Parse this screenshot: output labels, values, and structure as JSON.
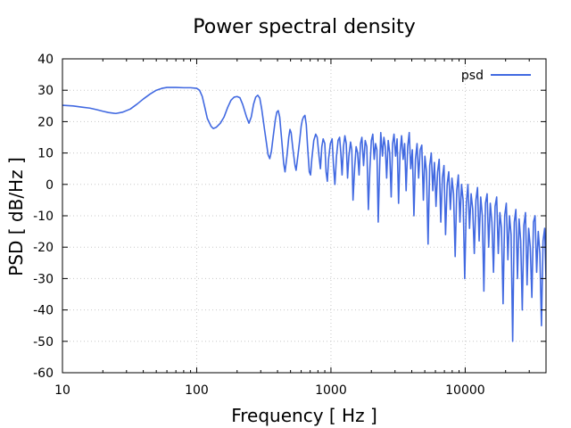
{
  "chart_data": {
    "type": "line",
    "title": "Power spectral density",
    "xlabel": "Frequency [ Hz ]",
    "ylabel": "PSD [ dB/Hz ]",
    "xscale": "log",
    "xlim": [
      10,
      40000
    ],
    "ylim": [
      -60,
      40
    ],
    "x_ticks": [
      10,
      100,
      1000,
      10000
    ],
    "x_tick_labels": [
      "10",
      "100",
      "1000",
      "10000"
    ],
    "y_ticks": [
      -60,
      -50,
      -40,
      -30,
      -20,
      -10,
      0,
      10,
      20,
      30,
      40
    ],
    "y_tick_labels": [
      "-60",
      "-50",
      "-40",
      "-30",
      "-20",
      "-10",
      "0",
      "10",
      "20",
      "30",
      "40"
    ],
    "grid": true,
    "legend_position": "top-right",
    "series": [
      {
        "name": "psd",
        "color": "#4169e1",
        "points": [
          [
            10,
            25.2
          ],
          [
            12,
            25.0
          ],
          [
            14,
            24.6
          ],
          [
            16,
            24.3
          ],
          [
            18,
            23.8
          ],
          [
            20,
            23.3
          ],
          [
            22,
            22.9
          ],
          [
            25,
            22.6
          ],
          [
            28,
            23.0
          ],
          [
            32,
            24.0
          ],
          [
            36,
            25.6
          ],
          [
            40,
            27.2
          ],
          [
            45,
            28.8
          ],
          [
            50,
            30.0
          ],
          [
            55,
            30.6
          ],
          [
            60,
            30.9
          ],
          [
            70,
            30.9
          ],
          [
            80,
            30.8
          ],
          [
            90,
            30.8
          ],
          [
            100,
            30.6
          ],
          [
            105,
            30.0
          ],
          [
            110,
            28.0
          ],
          [
            115,
            24.5
          ],
          [
            120,
            21.0
          ],
          [
            128,
            18.5
          ],
          [
            133,
            17.8
          ],
          [
            140,
            18.2
          ],
          [
            150,
            19.5
          ],
          [
            160,
            21.5
          ],
          [
            170,
            24.5
          ],
          [
            180,
            26.8
          ],
          [
            190,
            27.8
          ],
          [
            200,
            28.0
          ],
          [
            210,
            27.6
          ],
          [
            220,
            25.5
          ],
          [
            235,
            21.5
          ],
          [
            245,
            19.5
          ],
          [
            255,
            21.5
          ],
          [
            265,
            25.5
          ],
          [
            275,
            27.8
          ],
          [
            285,
            28.4
          ],
          [
            295,
            27.5
          ],
          [
            305,
            24.0
          ],
          [
            320,
            17.5
          ],
          [
            330,
            13.5
          ],
          [
            340,
            9.5
          ],
          [
            350,
            8.2
          ],
          [
            360,
            10.5
          ],
          [
            372,
            15.5
          ],
          [
            385,
            20.5
          ],
          [
            395,
            23.0
          ],
          [
            405,
            23.5
          ],
          [
            415,
            21.5
          ],
          [
            430,
            14.0
          ],
          [
            445,
            6.5
          ],
          [
            455,
            4.0
          ],
          [
            470,
            9.0
          ],
          [
            485,
            15.0
          ],
          [
            495,
            17.5
          ],
          [
            505,
            16.5
          ],
          [
            520,
            11.5
          ],
          [
            540,
            6.0
          ],
          [
            550,
            4.5
          ],
          [
            565,
            8.5
          ],
          [
            585,
            14.0
          ],
          [
            600,
            18.5
          ],
          [
            612,
            20.5
          ],
          [
            625,
            21.5
          ],
          [
            640,
            22.0
          ],
          [
            655,
            19.0
          ],
          [
            670,
            12.0
          ],
          [
            690,
            4.0
          ],
          [
            705,
            3.0
          ],
          [
            720,
            8.0
          ],
          [
            745,
            14.0
          ],
          [
            770,
            16.0
          ],
          [
            790,
            15.0
          ],
          [
            815,
            9.0
          ],
          [
            835,
            5.0
          ],
          [
            855,
            12.0
          ],
          [
            875,
            14.5
          ],
          [
            900,
            13.0
          ],
          [
            920,
            4.0
          ],
          [
            940,
            1.0
          ],
          [
            960,
            8.0
          ],
          [
            990,
            13.0
          ],
          [
            1020,
            14.5
          ],
          [
            1045,
            6.0
          ],
          [
            1070,
            0.0
          ],
          [
            1100,
            9.0
          ],
          [
            1130,
            14.0
          ],
          [
            1160,
            15.0
          ],
          [
            1185,
            10.0
          ],
          [
            1210,
            3.0
          ],
          [
            1240,
            12.0
          ],
          [
            1270,
            15.5
          ],
          [
            1300,
            13.0
          ],
          [
            1330,
            2.0
          ],
          [
            1360,
            9.0
          ],
          [
            1400,
            13.5
          ],
          [
            1430,
            11.0
          ],
          [
            1460,
            -5.0
          ],
          [
            1500,
            5.0
          ],
          [
            1540,
            12.0
          ],
          [
            1580,
            10.0
          ],
          [
            1620,
            3.0
          ],
          [
            1660,
            13.0
          ],
          [
            1700,
            15.0
          ],
          [
            1750,
            6.0
          ],
          [
            1800,
            14.0
          ],
          [
            1850,
            12.0
          ],
          [
            1900,
            -8.0
          ],
          [
            1950,
            5.0
          ],
          [
            2000,
            14.0
          ],
          [
            2050,
            16.0
          ],
          [
            2100,
            8.0
          ],
          [
            2150,
            13.0
          ],
          [
            2200,
            11.0
          ],
          [
            2250,
            -12.0
          ],
          [
            2300,
            4.0
          ],
          [
            2350,
            16.5
          ],
          [
            2420,
            9.0
          ],
          [
            2480,
            15.0
          ],
          [
            2540,
            12.0
          ],
          [
            2600,
            2.0
          ],
          [
            2670,
            14.0
          ],
          [
            2740,
            10.0
          ],
          [
            2810,
            -4.0
          ],
          [
            2880,
            13.0
          ],
          [
            2950,
            16.0
          ],
          [
            3030,
            9.0
          ],
          [
            3110,
            14.5
          ],
          [
            3190,
            -6.0
          ],
          [
            3270,
            10.0
          ],
          [
            3360,
            15.5
          ],
          [
            3450,
            8.0
          ],
          [
            3540,
            13.0
          ],
          [
            3630,
            -2.0
          ],
          [
            3730,
            12.0
          ],
          [
            3830,
            16.5
          ],
          [
            3930,
            5.0
          ],
          [
            4040,
            11.0
          ],
          [
            4150,
            -10.0
          ],
          [
            4260,
            8.0
          ],
          [
            4380,
            13.0
          ],
          [
            4500,
            2.0
          ],
          [
            4620,
            11.0
          ],
          [
            4750,
            12.5
          ],
          [
            4880,
            -5.0
          ],
          [
            5010,
            9.0
          ],
          [
            5150,
            4.0
          ],
          [
            5290,
            -19.0
          ],
          [
            5440,
            6.0
          ],
          [
            5590,
            10.0
          ],
          [
            5740,
            -2.0
          ],
          [
            5900,
            7.0
          ],
          [
            6060,
            -7.0
          ],
          [
            6230,
            4.0
          ],
          [
            6400,
            8.0
          ],
          [
            6580,
            -12.0
          ],
          [
            6760,
            2.0
          ],
          [
            6950,
            6.0
          ],
          [
            7140,
            -16.0
          ],
          [
            7340,
            0.0
          ],
          [
            7540,
            4.0
          ],
          [
            7750,
            -8.0
          ],
          [
            7970,
            2.0
          ],
          [
            8190,
            -3.0
          ],
          [
            8420,
            -23.0
          ],
          [
            8650,
            -2.0
          ],
          [
            8890,
            3.0
          ],
          [
            9140,
            -12.0
          ],
          [
            9390,
            0.0
          ],
          [
            9650,
            -5.0
          ],
          [
            9920,
            -30.0
          ],
          [
            10200,
            -6.0
          ],
          [
            10480,
            0.0
          ],
          [
            10770,
            -14.0
          ],
          [
            11070,
            -3.0
          ],
          [
            11380,
            -8.0
          ],
          [
            11690,
            -22.0
          ],
          [
            12020,
            -5.0
          ],
          [
            12350,
            -1.0
          ],
          [
            12700,
            -18.0
          ],
          [
            13050,
            -4.0
          ],
          [
            13410,
            -10.0
          ],
          [
            13780,
            -34.0
          ],
          [
            14160,
            -6.0
          ],
          [
            14560,
            -3.0
          ],
          [
            14960,
            -20.0
          ],
          [
            15380,
            -6.0
          ],
          [
            15810,
            -12.0
          ],
          [
            16250,
            -28.0
          ],
          [
            16700,
            -7.0
          ],
          [
            17160,
            -4.0
          ],
          [
            17640,
            -22.0
          ],
          [
            18130,
            -9.0
          ],
          [
            18640,
            -14.0
          ],
          [
            19150,
            -38.0
          ],
          [
            19690,
            -10.0
          ],
          [
            20240,
            -6.0
          ],
          [
            20800,
            -24.0
          ],
          [
            21380,
            -10.0
          ],
          [
            21970,
            -16.0
          ],
          [
            22580,
            -50.0
          ],
          [
            23210,
            -12.0
          ],
          [
            23850,
            -8.0
          ],
          [
            24520,
            -30.0
          ],
          [
            25200,
            -11.0
          ],
          [
            25900,
            -18.0
          ],
          [
            26620,
            -40.0
          ],
          [
            27360,
            -13.0
          ],
          [
            28120,
            -9.0
          ],
          [
            28900,
            -32.0
          ],
          [
            29700,
            -14.0
          ],
          [
            30530,
            -20.0
          ],
          [
            31380,
            -36.0
          ],
          [
            32250,
            -12.0
          ],
          [
            33150,
            -10.0
          ],
          [
            34070,
            -28.0
          ],
          [
            35020,
            -15.0
          ],
          [
            35990,
            -22.0
          ],
          [
            36990,
            -45.0
          ],
          [
            38020,
            -18.0
          ],
          [
            39080,
            -14.0
          ],
          [
            40000,
            -30.0
          ]
        ]
      }
    ]
  }
}
